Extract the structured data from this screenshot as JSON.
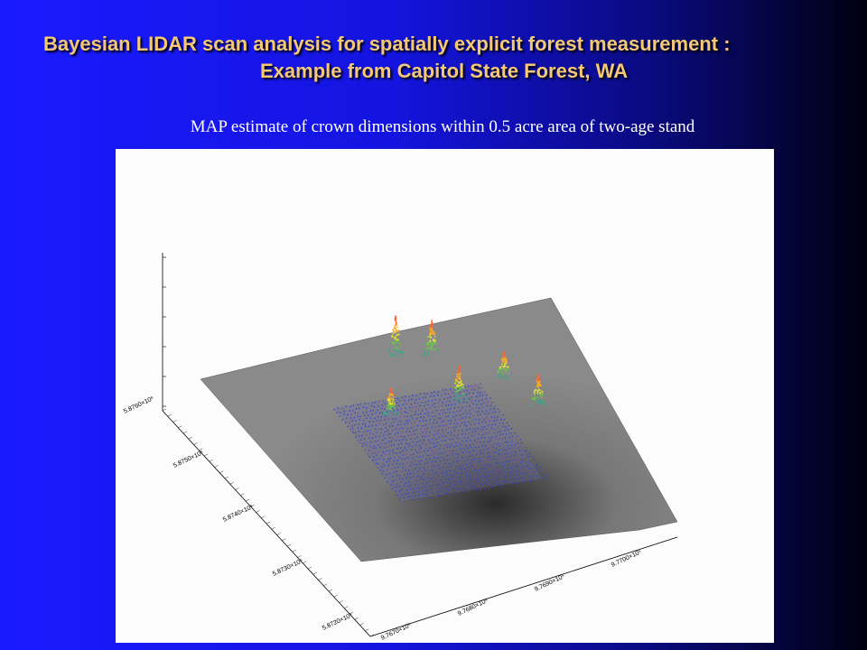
{
  "header": {
    "title_line1": "Bayesian LIDAR scan analysis for spatially explicit forest measurement :",
    "title_line2": "Example from Capitol State Forest, WA"
  },
  "figure": {
    "caption": "MAP estimate of crown dimensions within 0.5 acre area of two-age stand",
    "northing_labels": [
      "5.8760×10⁶",
      "5.8750×10⁶",
      "5.8740×10⁶",
      "5.8730×10⁶",
      "5.8720×10⁶"
    ],
    "easting_labels": [
      "9.7670×10⁵",
      "9.7680×10⁵",
      "9.7690×10⁵",
      "9.7700×10⁵"
    ]
  }
}
